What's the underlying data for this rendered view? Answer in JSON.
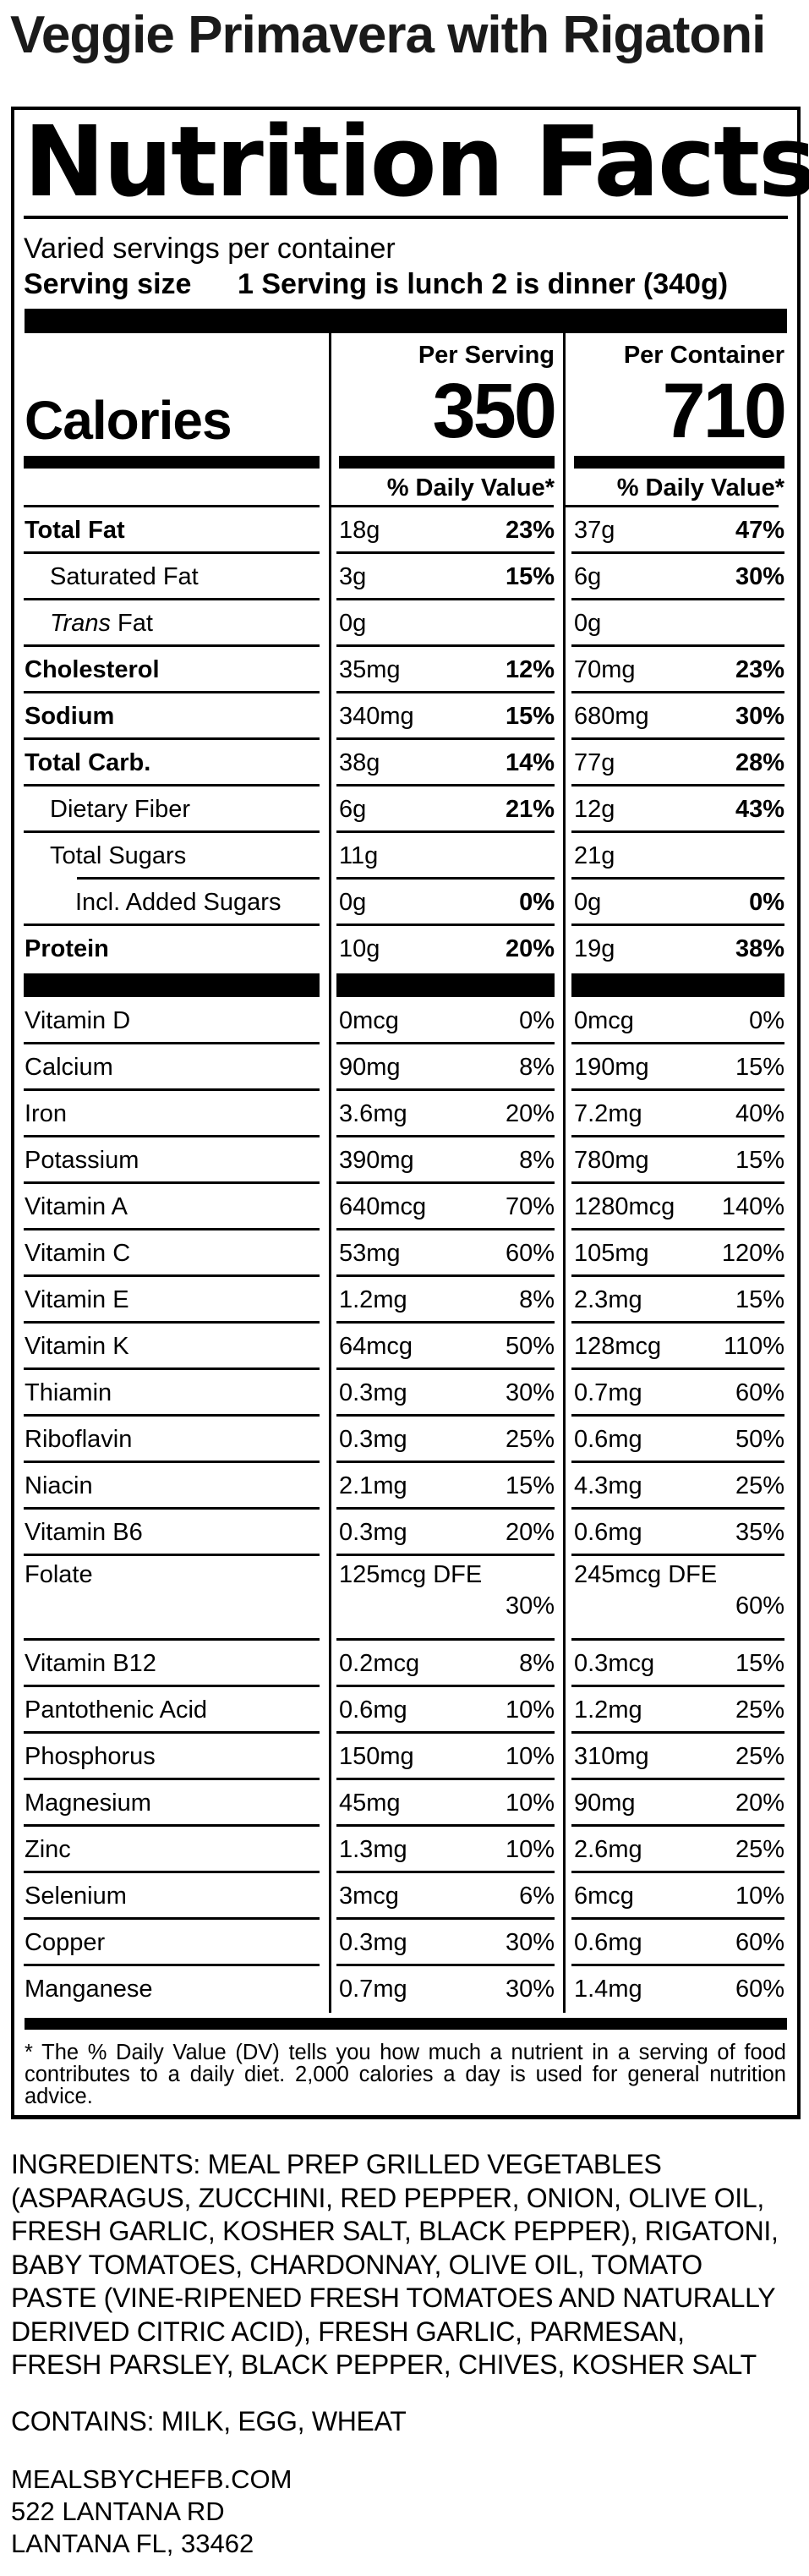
{
  "product_title": "Veggie Primavera with Rigatoni",
  "nutrition_facts": {
    "title": "Nutrition Facts",
    "servings_per_container": "Varied servings per container",
    "serving_size_label": "Serving size",
    "serving_size_value": "1 Serving is lunch 2 is dinner (340g)",
    "calories_label": "Calories",
    "per_serving_header": "Per Serving",
    "per_container_header": "Per Container",
    "calories_per_serving": "350",
    "calories_per_container": "710",
    "daily_value_header": "% Daily Value*",
    "rows": [
      {
        "name": "Total Fat",
        "bold": true,
        "s_amt": "18g",
        "s_dv": "23%",
        "c_amt": "37g",
        "c_dv": "47%",
        "dv_bold": true
      },
      {
        "name": "Saturated Fat",
        "indent": 1,
        "s_amt": "3g",
        "s_dv": "15%",
        "c_amt": "6g",
        "c_dv": "30%",
        "dv_bold": true
      },
      {
        "name": "Trans Fat",
        "italic_prefix": "Trans",
        "indent": 1,
        "s_amt": "0g",
        "s_dv": "",
        "c_amt": "0g",
        "c_dv": ""
      },
      {
        "name": "Cholesterol",
        "bold": true,
        "s_amt": "35mg",
        "s_dv": "12%",
        "c_amt": "70mg",
        "c_dv": "23%",
        "dv_bold": true
      },
      {
        "name": "Sodium",
        "bold": true,
        "s_amt": "340mg",
        "s_dv": "15%",
        "c_amt": "680mg",
        "c_dv": "30%",
        "dv_bold": true
      },
      {
        "name": "Total Carb.",
        "bold": true,
        "s_amt": "38g",
        "s_dv": "14%",
        "c_amt": "77g",
        "c_dv": "28%",
        "dv_bold": true
      },
      {
        "name": "Dietary Fiber",
        "indent": 1,
        "s_amt": "6g",
        "s_dv": "21%",
        "c_amt": "12g",
        "c_dv": "43%",
        "dv_bold": true
      },
      {
        "name": "Total Sugars",
        "indent": 1,
        "s_amt": "11g",
        "s_dv": "",
        "c_amt": "21g",
        "c_dv": "",
        "name_sep_indent": true
      },
      {
        "name": "Incl. Added Sugars",
        "indent": 2,
        "s_amt": "0g",
        "s_dv": "0%",
        "c_amt": "0g",
        "c_dv": "0%",
        "dv_bold": true
      },
      {
        "name": "Protein",
        "bold": true,
        "s_amt": "10g",
        "s_dv": "20%",
        "c_amt": "19g",
        "c_dv": "38%",
        "dv_bold": true,
        "no_sep": true,
        "bar_after": true
      },
      {
        "name": "Vitamin D",
        "s_amt": "0mcg",
        "s_dv": "0%",
        "c_amt": "0mcg",
        "c_dv": "0%"
      },
      {
        "name": "Calcium",
        "s_amt": "90mg",
        "s_dv": "8%",
        "c_amt": "190mg",
        "c_dv": "15%"
      },
      {
        "name": "Iron",
        "s_amt": "3.6mg",
        "s_dv": "20%",
        "c_amt": "7.2mg",
        "c_dv": "40%"
      },
      {
        "name": "Potassium",
        "s_amt": "390mg",
        "s_dv": "8%",
        "c_amt": "780mg",
        "c_dv": "15%"
      },
      {
        "name": "Vitamin A",
        "s_amt": "640mcg",
        "s_dv": "70%",
        "c_amt": "1280mcg",
        "c_dv": "140%"
      },
      {
        "name": "Vitamin C",
        "s_amt": "53mg",
        "s_dv": "60%",
        "c_amt": "105mg",
        "c_dv": "120%"
      },
      {
        "name": "Vitamin E",
        "s_amt": "1.2mg",
        "s_dv": "8%",
        "c_amt": "2.3mg",
        "c_dv": "15%"
      },
      {
        "name": "Vitamin K",
        "s_amt": "64mcg",
        "s_dv": "50%",
        "c_amt": "128mcg",
        "c_dv": "110%"
      },
      {
        "name": "Thiamin",
        "s_amt": "0.3mg",
        "s_dv": "30%",
        "c_amt": "0.7mg",
        "c_dv": "60%"
      },
      {
        "name": "Riboflavin",
        "s_amt": "0.3mg",
        "s_dv": "25%",
        "c_amt": "0.6mg",
        "c_dv": "50%"
      },
      {
        "name": "Niacin",
        "s_amt": "2.1mg",
        "s_dv": "15%",
        "c_amt": "4.3mg",
        "c_dv": "25%"
      },
      {
        "name": "Vitamin B6",
        "s_amt": "0.3mg",
        "s_dv": "20%",
        "c_amt": "0.6mg",
        "c_dv": "35%"
      },
      {
        "name": "Folate",
        "s_amt": "125mcg DFE",
        "s_dv": "30%",
        "c_amt": "245mcg DFE",
        "c_dv": "60%",
        "wrap": true
      },
      {
        "name": "Vitamin B12",
        "s_amt": "0.2mcg",
        "s_dv": "8%",
        "c_amt": "0.3mcg",
        "c_dv": "15%"
      },
      {
        "name": "Pantothenic Acid",
        "s_amt": "0.6mg",
        "s_dv": "10%",
        "c_amt": "1.2mg",
        "c_dv": "25%"
      },
      {
        "name": "Phosphorus",
        "s_amt": "150mg",
        "s_dv": "10%",
        "c_amt": "310mg",
        "c_dv": "25%"
      },
      {
        "name": "Magnesium",
        "s_amt": "45mg",
        "s_dv": "10%",
        "c_amt": "90mg",
        "c_dv": "20%"
      },
      {
        "name": "Zinc",
        "s_amt": "1.3mg",
        "s_dv": "10%",
        "c_amt": "2.6mg",
        "c_dv": "25%"
      },
      {
        "name": "Selenium",
        "s_amt": "3mcg",
        "s_dv": "6%",
        "c_amt": "6mcg",
        "c_dv": "10%"
      },
      {
        "name": "Copper",
        "s_amt": "0.3mg",
        "s_dv": "30%",
        "c_amt": "0.6mg",
        "c_dv": "60%"
      },
      {
        "name": "Manganese",
        "s_amt": "0.7mg",
        "s_dv": "30%",
        "c_amt": "1.4mg",
        "c_dv": "60%",
        "no_sep": true
      }
    ],
    "footnote": "* The % Daily Value (DV) tells you how much a nutrient in a serving of food contributes to a daily diet. 2,000 calories a day is used for general nutrition advice."
  },
  "ingredients": "INGREDIENTS: MEAL PREP GRILLED VEGETABLES (ASPARAGUS, ZUCCHINI, RED PEPPER, ONION, OLIVE OIL, FRESH GARLIC, KOSHER SALT, BLACK PEPPER), RIGATONI, BABY TOMATOES, CHARDONNAY, OLIVE OIL, TOMATO PASTE (VINE-RIPENED FRESH TOMATOES AND NATURALLY DERIVED CITRIC ACID), FRESH GARLIC, PARMESAN, FRESH PARSLEY, BLACK PEPPER, CHIVES, KOSHER SALT",
  "contains": "CONTAINS: MILK, EGG, WHEAT",
  "footer": {
    "website": "MEALSBYCHEFB.COM",
    "address_line1": "522 LANTANA RD",
    "address_line2": "LANTANA FL, 33462"
  }
}
